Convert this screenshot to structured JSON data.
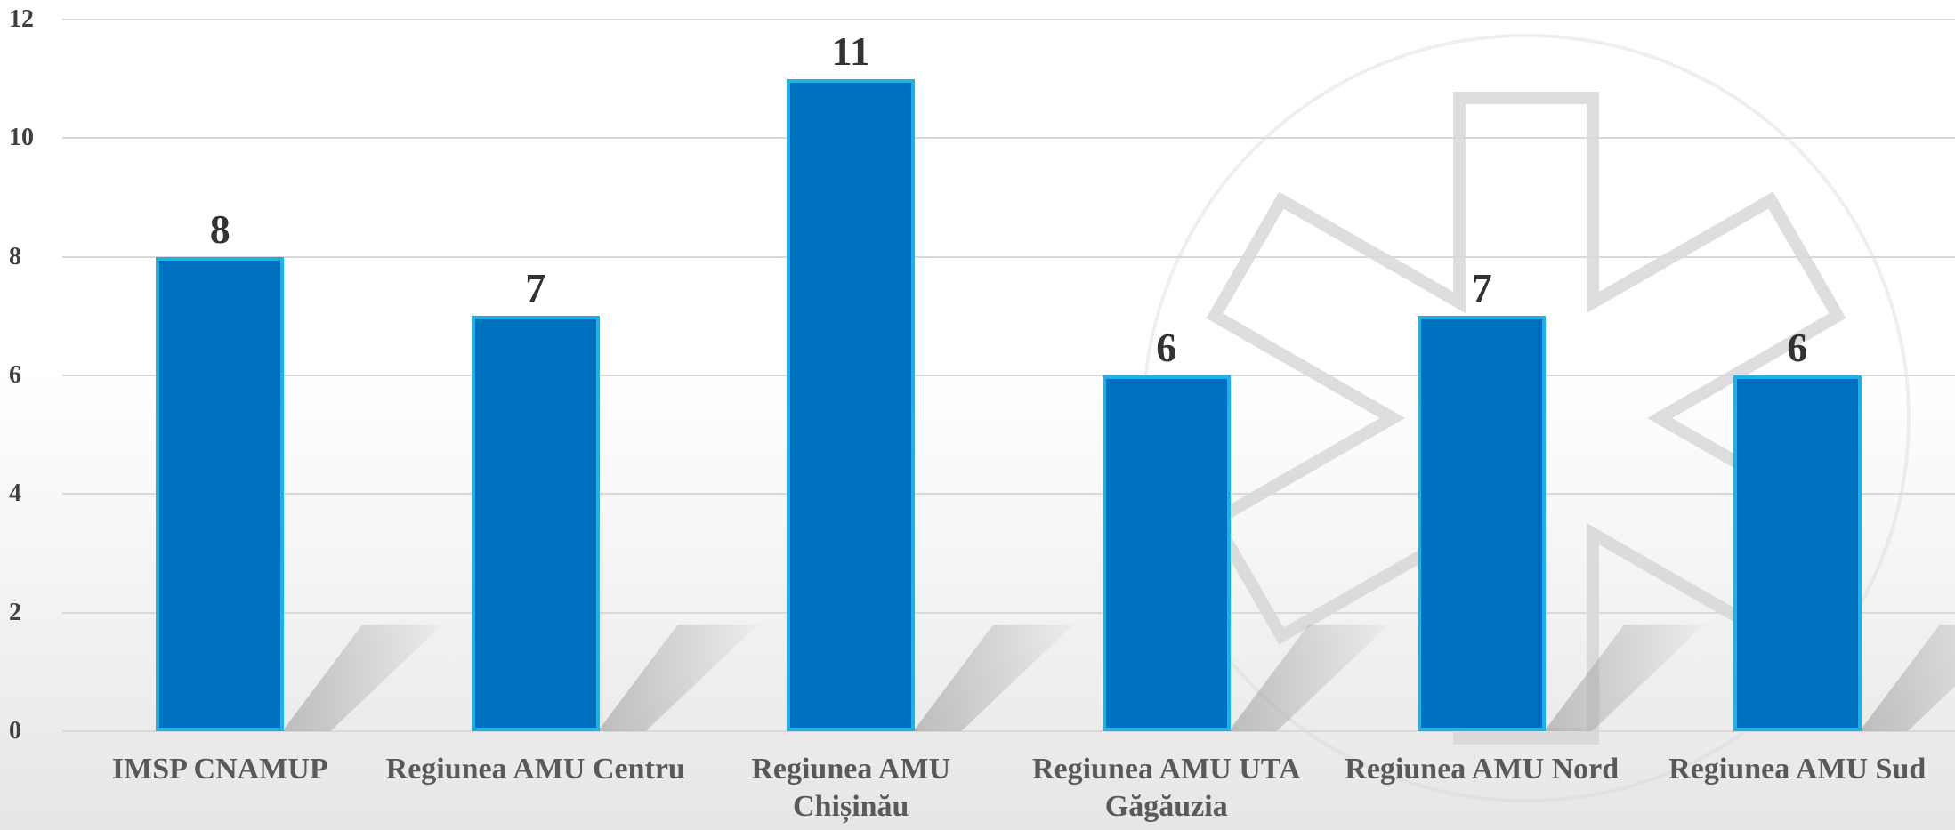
{
  "chart_data": {
    "type": "bar",
    "categories": [
      "IMSP CNAMUP",
      "Regiunea AMU Centru",
      "Regiunea AMU Chișinău",
      "Regiunea AMU UTA Găgăuzia",
      "Regiunea AMU Nord",
      "Regiunea AMU Sud"
    ],
    "values": [
      8,
      7,
      11,
      6,
      7,
      6
    ],
    "color": "#0070c0",
    "edge_color": "#1fb0e8",
    "ylim": [
      0,
      12
    ],
    "yticks": [
      0,
      2,
      4,
      6,
      8,
      10,
      12
    ],
    "grid": true
  }
}
